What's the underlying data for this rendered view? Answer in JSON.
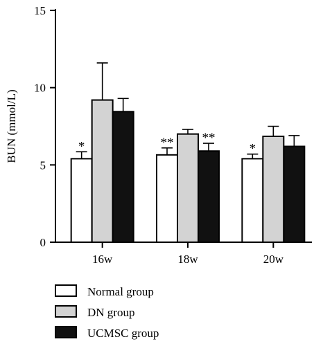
{
  "chart_data": {
    "type": "bar",
    "ylabel": "BUN (mmol/L)",
    "ylim": [
      0,
      15
    ],
    "yticks": [
      0,
      5,
      10,
      15
    ],
    "categories": [
      "16w",
      "18w",
      "20w"
    ],
    "series": [
      {
        "name": "Normal group",
        "values": [
          5.4,
          5.65,
          5.4
        ],
        "errors": [
          0.45,
          0.45,
          0.3
        ],
        "significance": [
          "*",
          "**",
          "*"
        ],
        "color": "#ffffff"
      },
      {
        "name": "DN group",
        "values": [
          9.2,
          7.0,
          6.85
        ],
        "errors": [
          2.4,
          0.3,
          0.65
        ],
        "significance": [
          "",
          "",
          ""
        ],
        "color": "#d3d3d3"
      },
      {
        "name": "UCMSC group",
        "values": [
          8.45,
          5.9,
          6.2
        ],
        "errors": [
          0.85,
          0.5,
          0.7
        ],
        "significance": [
          "",
          "**",
          ""
        ],
        "color": "#111111"
      }
    ],
    "grid": false,
    "legend": "bottom"
  }
}
